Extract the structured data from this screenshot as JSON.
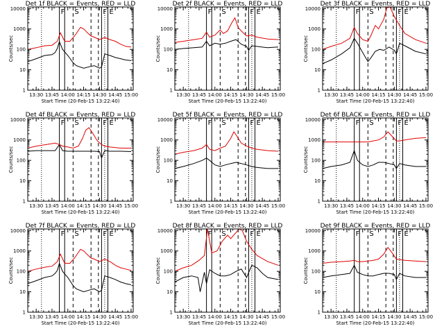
{
  "figure": {
    "colors": {
      "events": "#000000",
      "lld": "#e00000",
      "axes": "#000000",
      "background": "#ffffff"
    },
    "x_tick_labels": [
      "13:30",
      "13:45",
      "14:00",
      "14:15",
      "14:30",
      "14:45",
      "15:00"
    ],
    "y_tick_labels": [
      "1",
      "10",
      "100",
      "1000",
      "10000"
    ],
    "y_scale": "log",
    "ylim": [
      1,
      12000
    ],
    "xlim": [
      "13:22",
      "15:02"
    ],
    "ylabel": "Counts/sec",
    "xlabel": "Start Time (20-Feb-15 13:22:40)",
    "dotted_lines": [
      "13:35",
      "14:35"
    ],
    "solid_lines": [
      "13:52",
      "13:57",
      "14:32",
      "14:38"
    ],
    "dashed_lines": [
      "14:05",
      "14:22",
      "14:29"
    ],
    "region_markers": [
      {
        "text": "F",
        "time": "13:52"
      },
      {
        "text": "S",
        "time": "14:05"
      },
      {
        "text": "F",
        "time": "14:32"
      },
      {
        "text": "E",
        "time": "14:38"
      }
    ]
  },
  "chart_data": [
    {
      "type": "line",
      "title": "Det 1f BLACK = Events, RED = LLD",
      "series": [
        {
          "name": "Events",
          "color": "#000000",
          "x": [
            "13:22",
            "13:30",
            "13:38",
            "13:45",
            "13:48",
            "13:50",
            "13:52",
            "13:55",
            "14:00",
            "14:05",
            "14:08",
            "14:15",
            "14:20",
            "14:25",
            "14:30",
            "14:32",
            "14:35",
            "14:40",
            "14:45",
            "14:50",
            "14:55",
            "15:00"
          ],
          "y": [
            25,
            35,
            50,
            55,
            70,
            110,
            240,
            100,
            50,
            22,
            16,
            12,
            14,
            16,
            12,
            14,
            60,
            50,
            40,
            35,
            30,
            28
          ]
        },
        {
          "name": "LLD",
          "color": "#e00000",
          "x": [
            "13:22",
            "13:30",
            "13:38",
            "13:45",
            "13:50",
            "13:53",
            "13:57",
            "14:02",
            "14:07",
            "14:12",
            "14:15",
            "14:18",
            "14:22",
            "14:25",
            "14:30",
            "14:35",
            "14:40",
            "14:45",
            "14:50",
            "14:55",
            "15:00"
          ],
          "y": [
            100,
            120,
            150,
            160,
            250,
            650,
            250,
            250,
            500,
            1200,
            1000,
            700,
            450,
            400,
            300,
            380,
            300,
            250,
            180,
            140,
            130
          ]
        }
      ]
    },
    {
      "type": "line",
      "title": "Det 2f BLACK = Events, RED = LLD",
      "series": [
        {
          "name": "Events",
          "color": "#000000",
          "x": [
            "13:22",
            "13:30",
            "13:40",
            "13:48",
            "13:52",
            "13:55",
            "14:00",
            "14:05",
            "14:10",
            "14:15",
            "14:20",
            "14:25",
            "14:30",
            "14:32",
            "14:35",
            "14:40",
            "14:50",
            "15:00"
          ],
          "y": [
            100,
            110,
            120,
            130,
            250,
            150,
            200,
            180,
            200,
            250,
            300,
            180,
            140,
            90,
            150,
            140,
            120,
            130
          ]
        },
        {
          "name": "LLD",
          "color": "#e00000",
          "x": [
            "13:22",
            "13:30",
            "13:40",
            "13:48",
            "13:52",
            "13:55",
            "14:00",
            "14:05",
            "14:08",
            "14:12",
            "14:16",
            "14:19",
            "14:22",
            "14:25",
            "14:30",
            "14:35",
            "14:40",
            "14:50",
            "15:00"
          ],
          "y": [
            220,
            250,
            300,
            350,
            700,
            400,
            500,
            900,
            600,
            800,
            2000,
            3500,
            1200,
            800,
            450,
            500,
            400,
            320,
            300
          ]
        }
      ]
    },
    {
      "type": "line",
      "title": "Det 3f BLACK = Events, RED = LLD",
      "series": [
        {
          "name": "Events",
          "color": "#000000",
          "x": [
            "13:22",
            "13:30",
            "13:40",
            "13:48",
            "13:52",
            "13:55",
            "14:00",
            "14:05",
            "14:08",
            "14:12",
            "14:16",
            "14:20",
            "14:25",
            "14:30",
            "14:32",
            "14:35",
            "14:40",
            "14:50",
            "15:00"
          ],
          "y": [
            20,
            30,
            60,
            120,
            350,
            200,
            70,
            25,
            40,
            80,
            100,
            90,
            130,
            90,
            60,
            200,
            150,
            80,
            60
          ]
        },
        {
          "name": "LLD",
          "color": "#e00000",
          "x": [
            "13:22",
            "13:30",
            "13:40",
            "13:48",
            "13:52",
            "13:55",
            "14:00",
            "14:05",
            "14:08",
            "14:12",
            "14:15",
            "14:20",
            "14:23",
            "14:26",
            "14:30",
            "14:35",
            "14:40",
            "14:50",
            "15:00"
          ],
          "y": [
            100,
            140,
            200,
            350,
            1200,
            600,
            300,
            250,
            500,
            1500,
            1000,
            3000,
            11000,
            12000,
            4000,
            1500,
            600,
            300,
            200
          ]
        }
      ]
    },
    {
      "type": "line",
      "title": "Det 4f BLACK = Events, RED = LLD",
      "series": [
        {
          "name": "Events",
          "color": "#000000",
          "x": [
            "13:22",
            "13:30",
            "13:40",
            "13:48",
            "13:52",
            "13:55",
            "14:00",
            "14:05",
            "14:10",
            "14:15",
            "14:20",
            "14:25",
            "14:30",
            "14:32",
            "14:35",
            "14:40",
            "14:50",
            "15:00"
          ],
          "y": [
            280,
            300,
            300,
            300,
            600,
            300,
            280,
            280,
            280,
            280,
            280,
            280,
            270,
            130,
            300,
            280,
            280,
            270
          ]
        },
        {
          "name": "LLD",
          "color": "#e00000",
          "x": [
            "13:22",
            "13:30",
            "13:40",
            "13:48",
            "13:52",
            "13:55",
            "14:00",
            "14:05",
            "14:10",
            "14:14",
            "14:17",
            "14:20",
            "14:24",
            "14:28",
            "14:32",
            "14:35",
            "14:40",
            "14:50",
            "15:00"
          ],
          "y": [
            400,
            500,
            600,
            700,
            600,
            500,
            450,
            400,
            500,
            1200,
            3000,
            4000,
            2000,
            900,
            600,
            500,
            450,
            400,
            400
          ]
        }
      ]
    },
    {
      "type": "line",
      "title": "Det 5f BLACK = Events, RED = LLD",
      "series": [
        {
          "name": "Events",
          "color": "#000000",
          "x": [
            "13:22",
            "13:30",
            "13:40",
            "13:48",
            "13:52",
            "13:55",
            "14:00",
            "14:05",
            "14:10",
            "14:15",
            "14:20",
            "14:25",
            "14:30",
            "14:35",
            "14:40",
            "14:50",
            "15:00"
          ],
          "y": [
            40,
            50,
            70,
            100,
            130,
            100,
            60,
            50,
            60,
            70,
            80,
            70,
            60,
            50,
            45,
            40,
            40
          ]
        },
        {
          "name": "LLD",
          "color": "#e00000",
          "x": [
            "13:22",
            "13:30",
            "13:40",
            "13:48",
            "13:52",
            "13:55",
            "14:00",
            "14:05",
            "14:10",
            "14:15",
            "14:18",
            "14:21",
            "14:25",
            "14:30",
            "14:35",
            "14:40",
            "14:50",
            "15:00"
          ],
          "y": [
            200,
            250,
            300,
            400,
            600,
            350,
            300,
            400,
            500,
            1200,
            2500,
            1500,
            700,
            500,
            400,
            350,
            300,
            280
          ]
        }
      ]
    },
    {
      "type": "line",
      "title": "Det 6f BLACK = Events, RED = LLD",
      "series": [
        {
          "name": "Events",
          "color": "#000000",
          "x": [
            "13:22",
            "13:30",
            "13:40",
            "13:48",
            "13:52",
            "13:55",
            "14:00",
            "14:05",
            "14:10",
            "14:15",
            "14:20",
            "14:25",
            "14:30",
            "14:32",
            "14:35",
            "14:40",
            "14:50",
            "15:00"
          ],
          "y": [
            40,
            50,
            60,
            80,
            300,
            100,
            60,
            50,
            60,
            80,
            80,
            70,
            60,
            40,
            70,
            60,
            50,
            50
          ]
        },
        {
          "name": "LLD",
          "color": "#e00000",
          "x": [
            "13:22",
            "13:30",
            "13:40",
            "13:48",
            "13:52",
            "13:55",
            "14:00",
            "14:05",
            "14:10",
            "14:15",
            "14:20",
            "14:24",
            "14:28",
            "14:32",
            "14:35",
            "14:40",
            "14:50",
            "15:00"
          ],
          "y": [
            800,
            800,
            800,
            800,
            800,
            800,
            800,
            800,
            900,
            1000,
            1400,
            2500,
            1500,
            900,
            900,
            1000,
            1200,
            1300
          ]
        }
      ]
    },
    {
      "type": "line",
      "title": "Det 7f BLACK = Events, RED = LLD",
      "series": [
        {
          "name": "Events",
          "color": "#000000",
          "x": [
            "13:22",
            "13:30",
            "13:38",
            "13:45",
            "13:48",
            "13:50",
            "13:52",
            "13:55",
            "14:00",
            "14:05",
            "14:08",
            "14:15",
            "14:20",
            "14:25",
            "14:30",
            "14:32",
            "14:35",
            "14:40",
            "14:45",
            "14:50",
            "14:55",
            "15:00"
          ],
          "y": [
            25,
            35,
            50,
            60,
            80,
            110,
            250,
            100,
            50,
            20,
            14,
            10,
            12,
            14,
            10,
            12,
            60,
            50,
            40,
            30,
            25,
            22
          ]
        },
        {
          "name": "LLD",
          "color": "#e00000",
          "x": [
            "13:22",
            "13:30",
            "13:38",
            "13:45",
            "13:50",
            "13:53",
            "13:57",
            "14:02",
            "14:07",
            "14:12",
            "14:15",
            "14:18",
            "14:22",
            "14:25",
            "14:30",
            "14:35",
            "14:40",
            "14:45",
            "14:50",
            "14:55",
            "15:00"
          ],
          "y": [
            100,
            130,
            160,
            180,
            300,
            700,
            250,
            250,
            500,
            1200,
            1000,
            700,
            450,
            400,
            300,
            400,
            300,
            200,
            150,
            130,
            110
          ]
        }
      ]
    },
    {
      "type": "line",
      "title": "Det 8f BLACK = Events, RED = LLD",
      "series": [
        {
          "name": "Events",
          "color": "#000000",
          "x": [
            "13:22",
            "13:30",
            "13:38",
            "13:44",
            "13:46",
            "13:50",
            "13:52",
            "13:55",
            "14:00",
            "14:05",
            "14:10",
            "14:15",
            "14:20",
            "14:25",
            "14:30",
            "14:35",
            "14:40",
            "14:45",
            "14:50",
            "15:00"
          ],
          "y": [
            30,
            50,
            60,
            50,
            10,
            90,
            25,
            120,
            80,
            60,
            60,
            70,
            100,
            130,
            50,
            200,
            150,
            80,
            50,
            40
          ]
        },
        {
          "name": "LLD",
          "color": "#e00000",
          "x": [
            "13:22",
            "13:30",
            "13:38",
            "13:45",
            "13:50",
            "13:53",
            "13:57",
            "14:02",
            "14:07",
            "14:12",
            "14:15",
            "14:20",
            "14:23",
            "14:26",
            "14:30",
            "14:35",
            "14:40",
            "14:50",
            "15:00"
          ],
          "y": [
            100,
            150,
            200,
            350,
            600,
            12000,
            800,
            1000,
            3000,
            6000,
            4000,
            8000,
            12000,
            10000,
            3000,
            1200,
            600,
            300,
            200
          ]
        }
      ]
    },
    {
      "type": "line",
      "title": "Det 9f BLACK = Events, RED = LLD",
      "series": [
        {
          "name": "Events",
          "color": "#000000",
          "x": [
            "13:22",
            "13:30",
            "13:40",
            "13:48",
            "13:52",
            "13:55",
            "14:00",
            "14:05",
            "14:10",
            "14:15",
            "14:20",
            "14:25",
            "14:30",
            "14:32",
            "14:35",
            "14:40",
            "14:50",
            "15:00"
          ],
          "y": [
            50,
            60,
            70,
            80,
            200,
            90,
            70,
            60,
            60,
            70,
            80,
            80,
            70,
            40,
            80,
            60,
            50,
            50
          ]
        },
        {
          "name": "LLD",
          "color": "#e00000",
          "x": [
            "13:22",
            "13:30",
            "13:40",
            "13:48",
            "13:52",
            "13:55",
            "14:00",
            "14:05",
            "14:10",
            "14:15",
            "14:20",
            "14:24",
            "14:28",
            "14:32",
            "14:35",
            "14:40",
            "14:50",
            "15:00"
          ],
          "y": [
            250,
            280,
            300,
            320,
            350,
            300,
            300,
            320,
            350,
            400,
            700,
            1500,
            800,
            400,
            380,
            350,
            320,
            300
          ]
        }
      ]
    }
  ]
}
